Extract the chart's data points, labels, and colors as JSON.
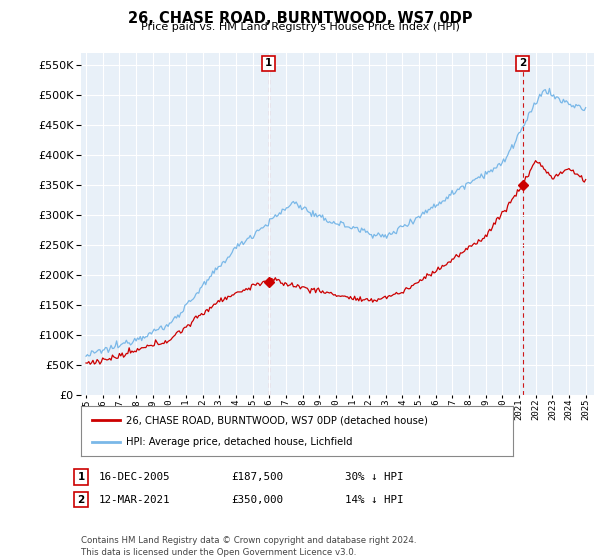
{
  "title": "26, CHASE ROAD, BURNTWOOD, WS7 0DP",
  "subtitle": "Price paid vs. HM Land Registry's House Price Index (HPI)",
  "yticks": [
    0,
    50000,
    100000,
    150000,
    200000,
    250000,
    300000,
    350000,
    400000,
    450000,
    500000,
    550000
  ],
  "ylim": [
    0,
    570000
  ],
  "xlim_left": 1994.7,
  "xlim_right": 2025.5,
  "legend_line1": "26, CHASE ROAD, BURNTWOOD, WS7 0DP (detached house)",
  "legend_line2": "HPI: Average price, detached house, Lichfield",
  "sale1_date": "16-DEC-2005",
  "sale1_price": "£187,500",
  "sale1_note": "30% ↓ HPI",
  "sale1_x": 2005.96,
  "sale1_y": 187500,
  "sale2_date": "12-MAR-2021",
  "sale2_price": "£350,000",
  "sale2_note": "14% ↓ HPI",
  "sale2_x": 2021.21,
  "sale2_y": 350000,
  "footer": "Contains HM Land Registry data © Crown copyright and database right 2024.\nThis data is licensed under the Open Government Licence v3.0.",
  "price_color": "#cc0000",
  "hpi_color": "#7ab8e8",
  "chart_bg": "#e8f0f8",
  "background_color": "#ffffff",
  "grid_color": "#ffffff",
  "marker_color": "#cc0000"
}
